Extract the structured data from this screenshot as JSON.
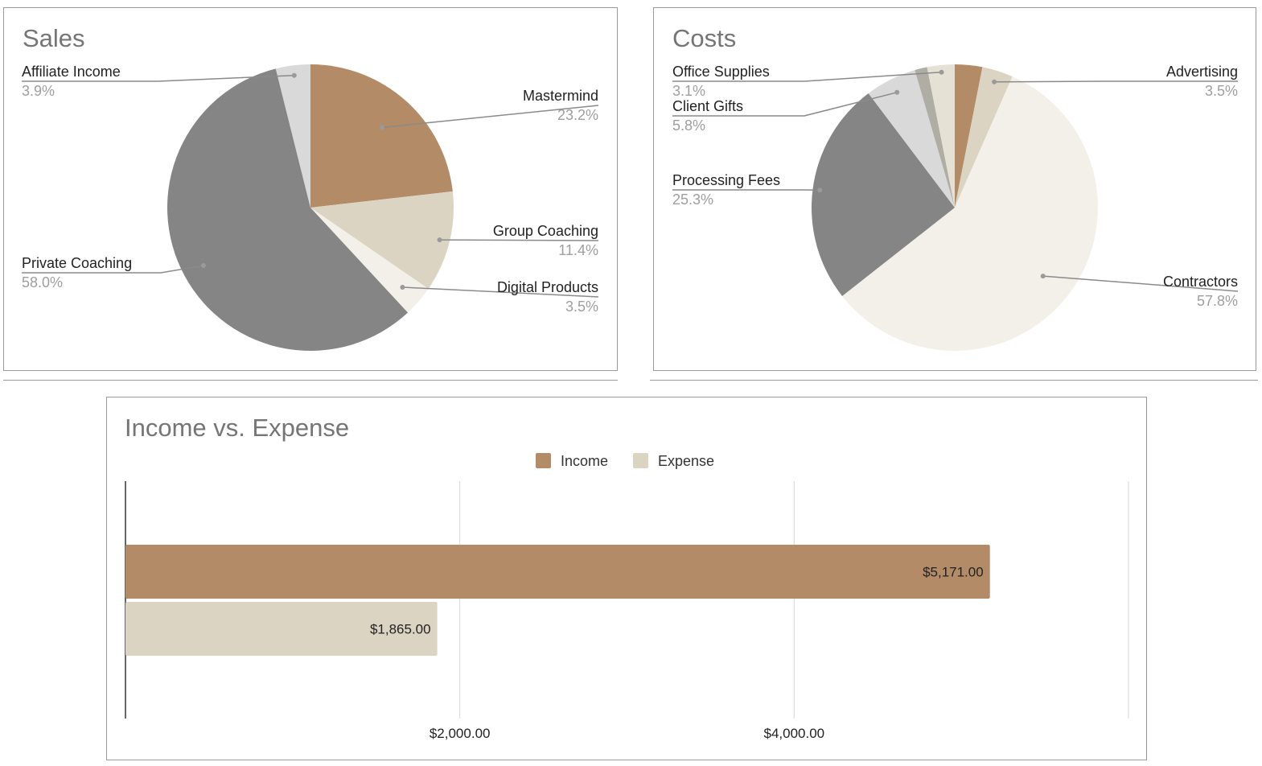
{
  "chart_data": [
    {
      "type": "pie",
      "title": "Sales",
      "slices": [
        {
          "label": "Mastermind",
          "value": 23.2,
          "pct_text": "23.2%",
          "color": "#b38b67",
          "labeled": true
        },
        {
          "label": "Group Coaching",
          "value": 11.4,
          "pct_text": "11.4%",
          "color": "#dbd4c3",
          "labeled": true
        },
        {
          "label": "Digital Products",
          "value": 3.5,
          "pct_text": "3.5%",
          "color": "#f3f0e9",
          "labeled": true
        },
        {
          "label": "Private Coaching",
          "value": 58.0,
          "pct_text": "58.0%",
          "color": "#858585",
          "labeled": true
        },
        {
          "label": "Affiliate Income",
          "value": 3.9,
          "pct_text": "3.9%",
          "color": "#d9d9d9",
          "labeled": true
        }
      ]
    },
    {
      "type": "pie",
      "title": "Costs",
      "slices": [
        {
          "label": "",
          "value": 3.1,
          "pct_text": "",
          "color": "#b38b67",
          "labeled": false
        },
        {
          "label": "Advertising",
          "value": 3.5,
          "pct_text": "3.5%",
          "color": "#dbd4c3",
          "labeled": true
        },
        {
          "label": "Contractors",
          "value": 57.8,
          "pct_text": "57.8%",
          "color": "#f3f0e9",
          "labeled": true
        },
        {
          "label": "Processing Fees",
          "value": 25.3,
          "pct_text": "25.3%",
          "color": "#858585",
          "labeled": true
        },
        {
          "label": "Client Gifts",
          "value": 5.8,
          "pct_text": "5.8%",
          "color": "#d9d9d9",
          "labeled": true
        },
        {
          "label": "",
          "value": 1.4,
          "pct_text": "",
          "color": "#b0ada5",
          "labeled": false
        },
        {
          "label": "Office Supplies",
          "value": 3.1,
          "pct_text": "3.1%",
          "color": "#e6e1d5",
          "labeled": true
        }
      ]
    },
    {
      "type": "bar",
      "orientation": "horizontal",
      "title": "Income vs. Expense",
      "legend": {
        "position": "top",
        "entries": [
          "Income",
          "Expense"
        ]
      },
      "series": [
        {
          "name": "Income",
          "values": [
            5171
          ],
          "label": "$5,171.00",
          "color": "#b38b67"
        },
        {
          "name": "Expense",
          "values": [
            1865
          ],
          "label": "$1,865.00",
          "color": "#dbd4c3"
        }
      ],
      "xlim": [
        0,
        6000
      ],
      "x_ticks": [
        {
          "value": 2000,
          "label": "$2,000.00"
        },
        {
          "value": 4000,
          "label": "$4,000.00"
        }
      ],
      "grid": true
    }
  ]
}
